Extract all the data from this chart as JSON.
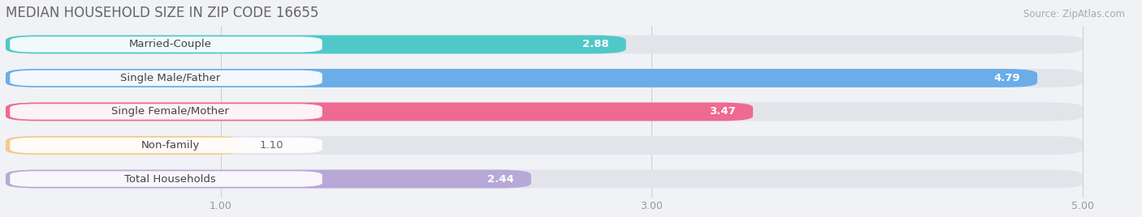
{
  "title": "MEDIAN HOUSEHOLD SIZE IN ZIP CODE 16655",
  "source": "Source: ZipAtlas.com",
  "categories": [
    "Married-Couple",
    "Single Male/Father",
    "Single Female/Mother",
    "Non-family",
    "Total Households"
  ],
  "values": [
    2.88,
    4.79,
    3.47,
    1.1,
    2.44
  ],
  "bar_colors": [
    "#50c8c8",
    "#6aade8",
    "#ee6a90",
    "#f5c98a",
    "#b8a8d8"
  ],
  "bg_color": "#f0f2f5",
  "bar_bg_color": "#e2e4ea",
  "label_bg_color": "#ffffff",
  "xlim": [
    0.0,
    5.25
  ],
  "xdata_max": 5.0,
  "xticks": [
    1.0,
    3.0,
    5.0
  ],
  "title_fontsize": 12,
  "source_fontsize": 8.5,
  "label_fontsize": 9.5,
  "value_fontsize": 9.5
}
